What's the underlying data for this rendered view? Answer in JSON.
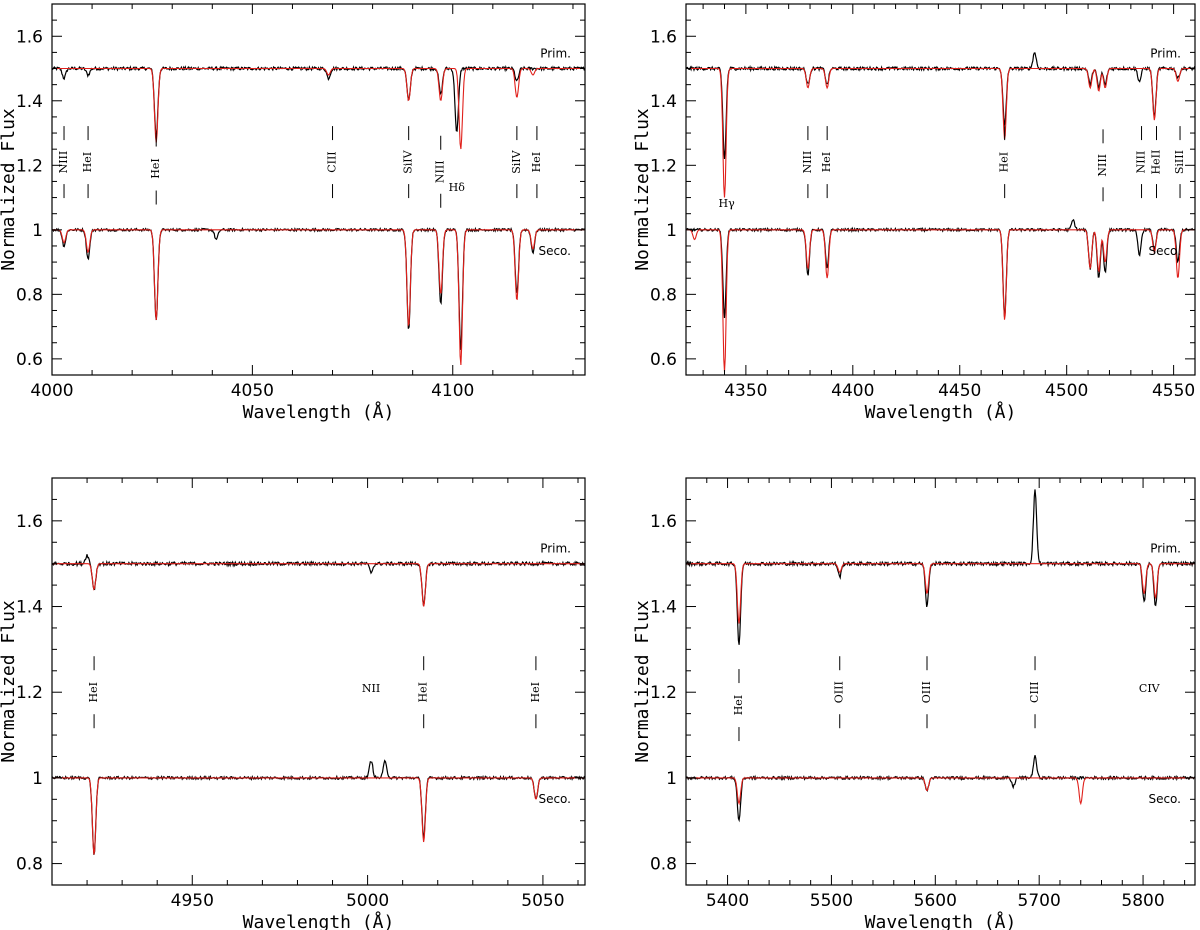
{
  "figure": {
    "ylabel": "Normalized Flux",
    "xlabel": "Wavelength (Å)",
    "colors": {
      "observed": "#000000",
      "model": "#e0201b",
      "axes": "#000000"
    }
  },
  "chart_data": [
    {
      "type": "line",
      "xlabel": "Wavelength (Å)",
      "ylabel": "Normalized Flux",
      "xlim": [
        4000,
        4133
      ],
      "ylim": [
        0.55,
        1.7
      ],
      "xticks": [
        4000,
        4050,
        4100
      ],
      "yticks": [
        0.6,
        0.8,
        1,
        1.2,
        1.4,
        1.6
      ],
      "ytick_labels": [
        "0.6",
        "0.8",
        "1",
        "1.2",
        "1.4",
        "1.6"
      ],
      "labels": {
        "primary": "Prim.",
        "secondary": "Seco."
      },
      "series": [
        {
          "name": "Primary observed",
          "offset": 1.5,
          "lines": [
            [
              4003,
              0.03
            ],
            [
              4009,
              0.02
            ],
            [
              4026,
              0.21
            ],
            [
              4069,
              0.03
            ],
            [
              4089,
              0.1
            ],
            [
              4097,
              0.08
            ],
            [
              4101,
              0.2
            ],
            [
              4116,
              0.04
            ]
          ],
          "noise": 0.006
        },
        {
          "name": "Primary model",
          "offset": 1.5,
          "lines": [
            [
              4026,
              0.23
            ],
            [
              4069,
              0.02
            ],
            [
              4089,
              0.1
            ],
            [
              4097,
              0.1
            ],
            [
              4102,
              0.25
            ],
            [
              4116,
              0.09
            ],
            [
              4120,
              0.02
            ]
          ],
          "noise": 0
        },
        {
          "name": "Secondary observed",
          "offset": 1.0,
          "lines": [
            [
              4003,
              0.05
            ],
            [
              4009,
              0.09
            ],
            [
              4026,
              0.28
            ],
            [
              4041,
              0.03
            ],
            [
              4089,
              0.31
            ],
            [
              4097,
              0.23
            ],
            [
              4102,
              0.37
            ],
            [
              4116,
              0.2
            ],
            [
              4120,
              0.07
            ]
          ],
          "noise": 0.005
        },
        {
          "name": "Secondary model",
          "offset": 1.0,
          "lines": [
            [
              4003,
              0.04
            ],
            [
              4009,
              0.07
            ],
            [
              4026,
              0.28
            ],
            [
              4089,
              0.3
            ],
            [
              4097,
              0.2
            ],
            [
              4102,
              0.42
            ],
            [
              4116,
              0.22
            ],
            [
              4120,
              0.06
            ]
          ],
          "noise": 0
        }
      ],
      "annotations": [
        {
          "label": "NIII",
          "x": 4003,
          "y": 1.21
        },
        {
          "label": "HeI",
          "x": 4009,
          "y": 1.21
        },
        {
          "label": "HeI",
          "x": 4026,
          "y": 1.19
        },
        {
          "label": "CIII",
          "x": 4070,
          "y": 1.21
        },
        {
          "label": "SiIV",
          "x": 4089,
          "y": 1.21
        },
        {
          "label": "NIII",
          "x": 4097,
          "y": 1.18
        },
        {
          "label": "SiIV",
          "x": 4116,
          "y": 1.21
        },
        {
          "label": "HeI",
          "x": 4121,
          "y": 1.21
        },
        {
          "label": "Hδ",
          "x": 4101,
          "y": 1.12,
          "plain": true
        }
      ]
    },
    {
      "type": "line",
      "xlabel": "Wavelength (Å)",
      "ylabel": "Normalized Flux",
      "xlim": [
        4322,
        4560
      ],
      "ylim": [
        0.55,
        1.7
      ],
      "xticks": [
        4350,
        4400,
        4450,
        4500,
        4550
      ],
      "yticks": [
        0.6,
        0.8,
        1,
        1.2,
        1.4,
        1.6
      ],
      "ytick_labels": [
        "0.6",
        "0.8",
        "1",
        "1.2",
        "1.4",
        "1.6"
      ],
      "labels": {
        "primary": "Prim.",
        "secondary": "Seco."
      },
      "series": [
        {
          "name": "Primary observed",
          "offset": 1.5,
          "lines": [
            [
              4340,
              0.28
            ],
            [
              4379,
              0.05
            ],
            [
              4388,
              0.05
            ],
            [
              4471,
              0.18
            ],
            [
              4511,
              0.05
            ],
            [
              4515,
              0.06
            ],
            [
              4518,
              0.05
            ],
            [
              4534,
              0.04
            ],
            [
              4541,
              0.15
            ],
            [
              4552,
              0.03
            ],
            [
              4485,
              -0.05
            ]
          ],
          "noise": 0.006
        },
        {
          "name": "Primary model",
          "offset": 1.5,
          "lines": [
            [
              4340,
              0.4
            ],
            [
              4379,
              0.06
            ],
            [
              4388,
              0.06
            ],
            [
              4471,
              0.22
            ],
            [
              4511,
              0.06
            ],
            [
              4515,
              0.07
            ],
            [
              4518,
              0.06
            ],
            [
              4541,
              0.16
            ],
            [
              4552,
              0.04
            ]
          ],
          "noise": 0
        },
        {
          "name": "Secondary observed",
          "offset": 1.0,
          "lines": [
            [
              4340,
              0.27
            ],
            [
              4379,
              0.14
            ],
            [
              4388,
              0.12
            ],
            [
              4471,
              0.27
            ],
            [
              4511,
              0.12
            ],
            [
              4515,
              0.15
            ],
            [
              4518,
              0.13
            ],
            [
              4534,
              0.08
            ],
            [
              4541,
              0.06
            ],
            [
              4552,
              0.1
            ],
            [
              4503,
              -0.03
            ]
          ],
          "noise": 0.005
        },
        {
          "name": "Secondary model",
          "offset": 1.0,
          "lines": [
            [
              4326,
              0.03
            ],
            [
              4340,
              0.44
            ],
            [
              4379,
              0.12
            ],
            [
              4388,
              0.15
            ],
            [
              4471,
              0.28
            ],
            [
              4511,
              0.12
            ],
            [
              4515,
              0.13
            ],
            [
              4518,
              0.1
            ],
            [
              4541,
              0.07
            ],
            [
              4552,
              0.15
            ]
          ],
          "noise": 0
        }
      ],
      "annotations": [
        {
          "label": "NIII",
          "x": 4379,
          "y": 1.21
        },
        {
          "label": "HeI",
          "x": 4388,
          "y": 1.21
        },
        {
          "label": "HeI",
          "x": 4471,
          "y": 1.21
        },
        {
          "label": "NIII",
          "x": 4517,
          "y": 1.2
        },
        {
          "label": "NIII",
          "x": 4535,
          "y": 1.21
        },
        {
          "label": "HeII",
          "x": 4542,
          "y": 1.21
        },
        {
          "label": "SiIII",
          "x": 4553,
          "y": 1.21
        },
        {
          "label": "Hγ",
          "x": 4341,
          "y": 1.07,
          "plain": true
        }
      ]
    },
    {
      "type": "line",
      "xlabel": "Wavelength (Å)",
      "ylabel": "Normalized Flux",
      "xlim": [
        4910,
        5062
      ],
      "ylim": [
        0.75,
        1.7
      ],
      "xticks": [
        4950,
        5000,
        5050
      ],
      "yticks": [
        0.8,
        1,
        1.2,
        1.4,
        1.6
      ],
      "ytick_labels": [
        "0.8",
        "1",
        "1.2",
        "1.4",
        "1.6"
      ],
      "labels": {
        "primary": "Prim.",
        "secondary": "Seco."
      },
      "series": [
        {
          "name": "Primary observed",
          "offset": 1.5,
          "lines": [
            [
              4922,
              0.06
            ],
            [
              4920,
              -0.02
            ],
            [
              5001,
              0.02
            ],
            [
              5016,
              0.1
            ]
          ],
          "noise": 0.005
        },
        {
          "name": "Primary model",
          "offset": 1.5,
          "lines": [
            [
              4922,
              0.06
            ],
            [
              5016,
              0.1
            ]
          ],
          "noise": 0
        },
        {
          "name": "Secondary observed",
          "offset": 1.0,
          "lines": [
            [
              4922,
              0.18
            ],
            [
              5001,
              -0.04
            ],
            [
              5005,
              -0.04
            ],
            [
              5016,
              0.14
            ],
            [
              5048,
              0.05
            ]
          ],
          "noise": 0.004
        },
        {
          "name": "Secondary model",
          "offset": 1.0,
          "lines": [
            [
              4922,
              0.18
            ],
            [
              5016,
              0.15
            ],
            [
              5048,
              0.05
            ]
          ],
          "noise": 0
        }
      ],
      "annotations": [
        {
          "label": "HeI",
          "x": 4922,
          "y": 1.2
        },
        {
          "label": "NII",
          "x": 5001,
          "y": 1.2,
          "plain": true
        },
        {
          "label": "HeI",
          "x": 5016,
          "y": 1.2
        },
        {
          "label": "HeI",
          "x": 5048,
          "y": 1.2
        }
      ]
    },
    {
      "type": "line",
      "xlabel": "Wavelength (Å)",
      "ylabel": "Normalized Flux",
      "xlim": [
        5360,
        5850
      ],
      "ylim": [
        0.75,
        1.7
      ],
      "xticks": [
        5400,
        5500,
        5600,
        5700,
        5800
      ],
      "yticks": [
        0.8,
        1,
        1.2,
        1.4,
        1.6
      ],
      "ytick_labels": [
        "0.8",
        "1",
        "1.2",
        "1.4",
        "1.6"
      ],
      "labels": {
        "primary": "Prim.",
        "secondary": "Seco."
      },
      "series": [
        {
          "name": "Primary observed",
          "offset": 1.5,
          "lines": [
            [
              5411,
              0.19
            ],
            [
              5508,
              0.03
            ],
            [
              5592,
              0.1
            ],
            [
              5696,
              -0.17
            ],
            [
              5801,
              0.09
            ],
            [
              5812,
              0.1
            ]
          ],
          "noise": 0.005
        },
        {
          "name": "Primary model",
          "offset": 1.5,
          "lines": [
            [
              5411,
              0.14
            ],
            [
              5508,
              0.02
            ],
            [
              5592,
              0.07
            ],
            [
              5801,
              0.07
            ],
            [
              5812,
              0.08
            ]
          ],
          "noise": 0
        },
        {
          "name": "Secondary observed",
          "offset": 1.0,
          "lines": [
            [
              5411,
              0.1
            ],
            [
              5592,
              0.03
            ],
            [
              5696,
              -0.05
            ],
            [
              5675,
              0.02
            ]
          ],
          "noise": 0.004
        },
        {
          "name": "Secondary model",
          "offset": 1.0,
          "lines": [
            [
              5411,
              0.06
            ],
            [
              5592,
              0.03
            ],
            [
              5740,
              0.06
            ]
          ],
          "noise": 0
        }
      ],
      "annotations": [
        {
          "label": "HeI",
          "x": 5411,
          "y": 1.17
        },
        {
          "label": "OIII",
          "x": 5508,
          "y": 1.2
        },
        {
          "label": "OIII",
          "x": 5592,
          "y": 1.2
        },
        {
          "label": "CIII",
          "x": 5696,
          "y": 1.2
        },
        {
          "label": "CIV",
          "x": 5806,
          "y": 1.2,
          "plain": true
        }
      ]
    }
  ]
}
